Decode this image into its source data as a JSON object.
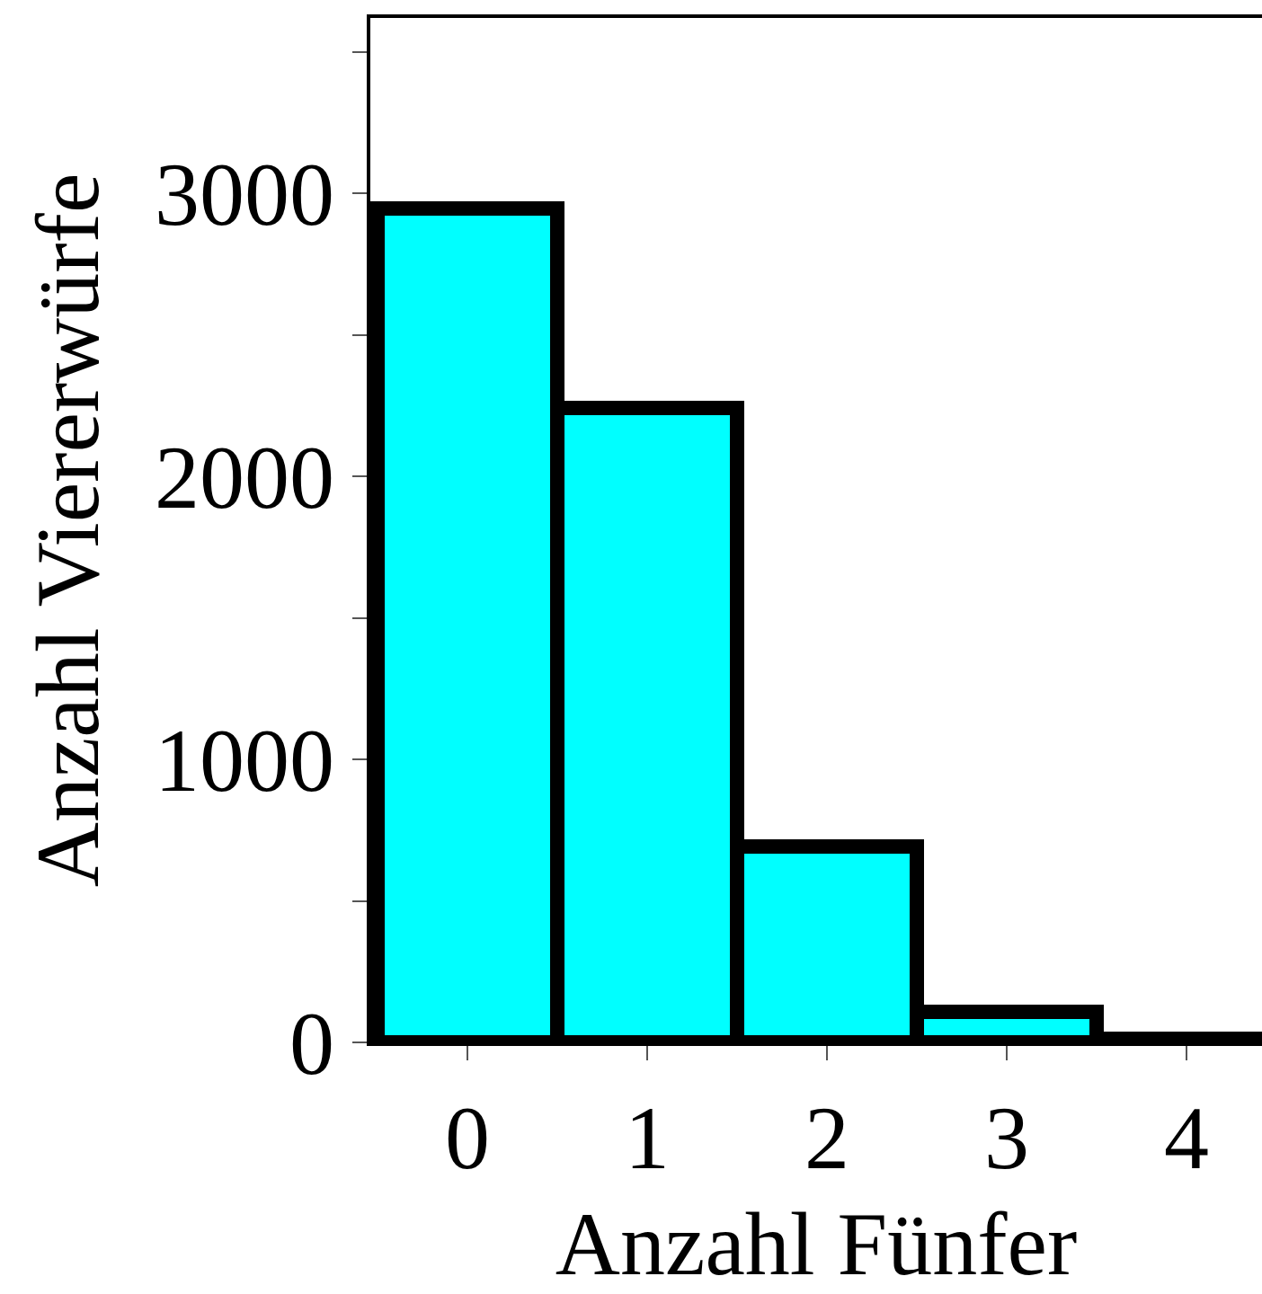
{
  "chart_data": {
    "type": "bar",
    "xlabel": "Anzahl Fünfer",
    "ylabel": "Anzahl Viererwürfe",
    "categories": [
      "0",
      "1",
      "2",
      "3",
      "4"
    ],
    "values": [
      2950,
      2240,
      690,
      110,
      10
    ],
    "color": "#00ffff",
    "ylim": [
      0,
      3620
    ],
    "yticks": [
      0,
      {
        "value": 500,
        "label": null
      },
      1000,
      {
        "value": 1500,
        "label": null
      },
      2000,
      {
        "value": 2500,
        "label": null
      },
      3000,
      {
        "value": 3500,
        "label": null
      }
    ],
    "grid": false
  }
}
